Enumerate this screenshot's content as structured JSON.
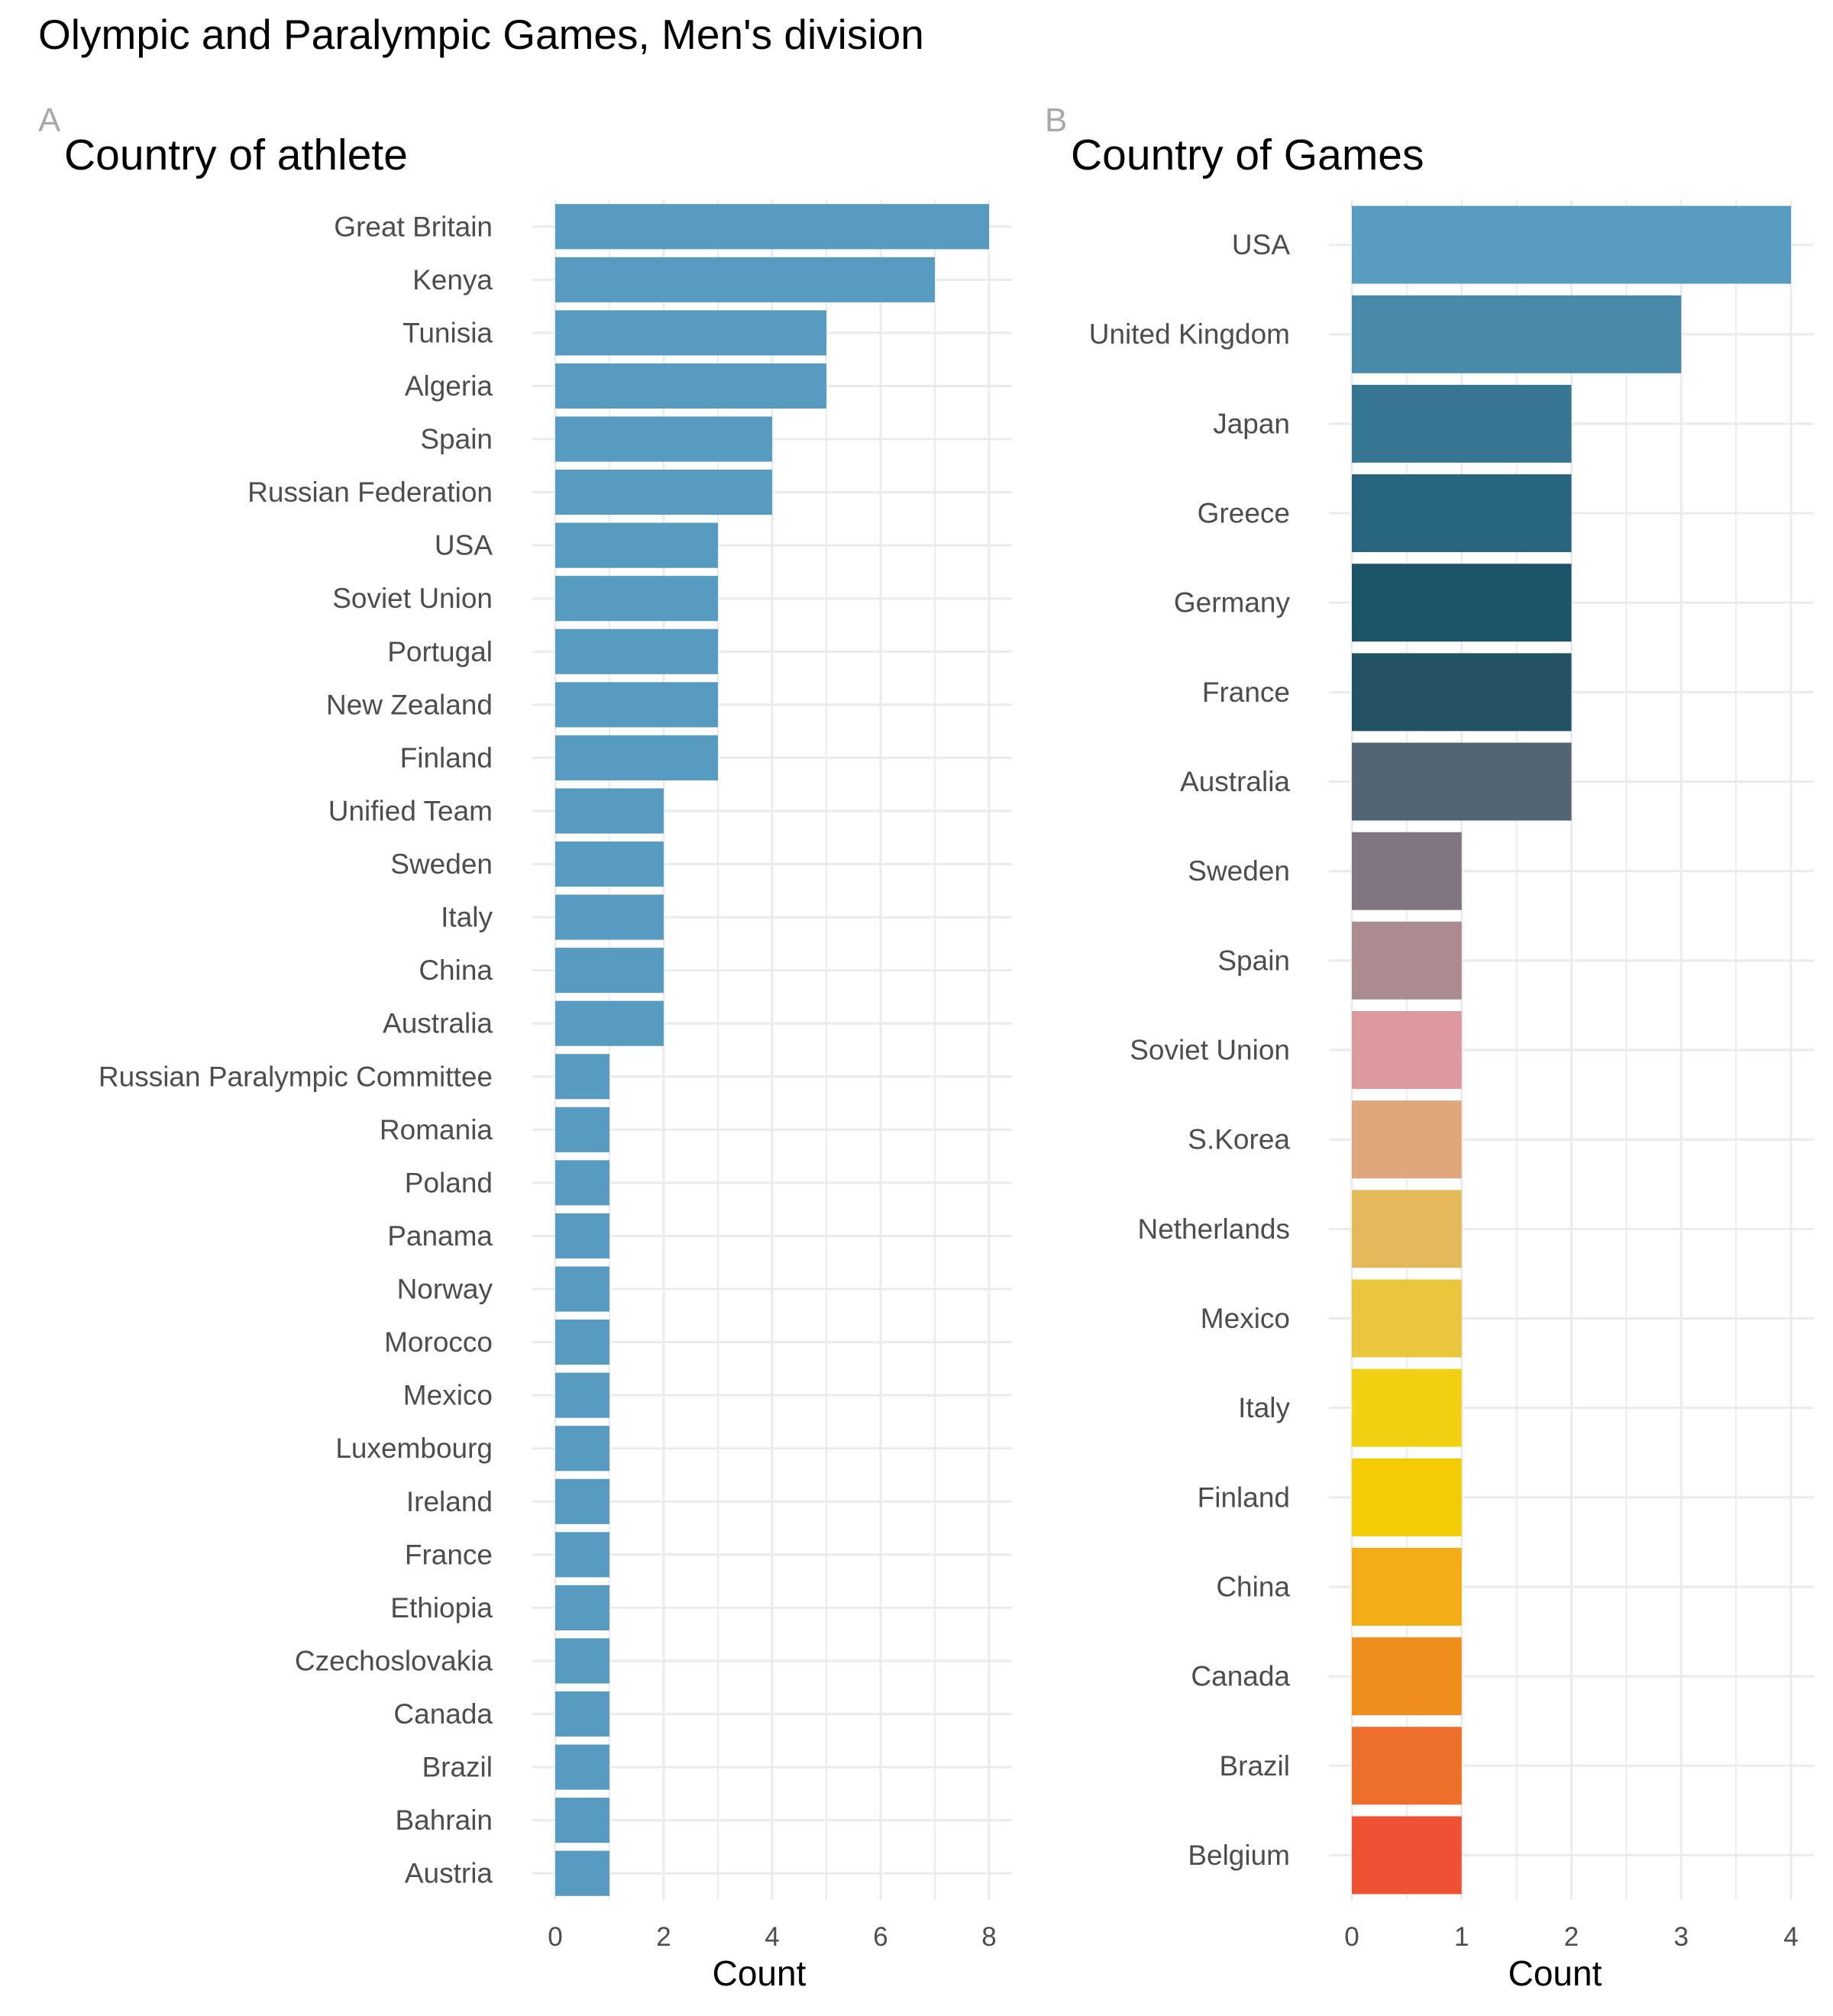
{
  "chart_data": [
    {
      "type": "bar",
      "orientation": "horizontal",
      "title": "Olympic and Paralympic Games, Men's division",
      "tag": "A",
      "subtitle": "Country of athlete",
      "xlabel": "Count",
      "ylabel": "",
      "xlim": [
        0,
        8
      ],
      "xticks": [
        0,
        2,
        4,
        6,
        8
      ],
      "grid": true,
      "bar_color": "#579cc0",
      "categories": [
        "Great Britain",
        "Kenya",
        "Tunisia",
        "Algeria",
        "Spain",
        "Russian Federation",
        "USA",
        "Soviet Union",
        "Portugal",
        "New Zealand",
        "Finland",
        "Unified Team",
        "Sweden",
        "Italy",
        "China",
        "Australia",
        "Russian Paralympic Committee",
        "Romania",
        "Poland",
        "Panama",
        "Norway",
        "Morocco",
        "Mexico",
        "Luxembourg",
        "Ireland",
        "France",
        "Ethiopia",
        "Czechoslovakia",
        "Canada",
        "Brazil",
        "Bahrain",
        "Austria"
      ],
      "values": [
        8,
        7,
        5,
        5,
        4,
        4,
        3,
        3,
        3,
        3,
        3,
        2,
        2,
        2,
        2,
        2,
        1,
        1,
        1,
        1,
        1,
        1,
        1,
        1,
        1,
        1,
        1,
        1,
        1,
        1,
        1,
        1
      ]
    },
    {
      "type": "bar",
      "orientation": "horizontal",
      "tag": "B",
      "subtitle": "Country of Games",
      "xlabel": "Count",
      "ylabel": "",
      "xlim": [
        0,
        4
      ],
      "xticks": [
        0,
        1,
        2,
        3,
        4
      ],
      "grid": true,
      "categories": [
        "USA",
        "United Kingdom",
        "Japan",
        "Greece",
        "Germany",
        "France",
        "Australia",
        "Sweden",
        "Spain",
        "Soviet Union",
        "S.Korea",
        "Netherlands",
        "Mexico",
        "Italy",
        "Finland",
        "China",
        "Canada",
        "Brazil",
        "Belgium"
      ],
      "values": [
        4,
        3,
        2,
        2,
        2,
        2,
        2,
        1,
        1,
        1,
        1,
        1,
        1,
        1,
        1,
        1,
        1,
        1,
        1
      ],
      "colors": [
        "#589cc0",
        "#4888a8",
        "#367691",
        "#27657f",
        "#1b5368",
        "#245265",
        "#536472",
        "#827581",
        "#ac8b8e",
        "#dc989e",
        "#e1a77c",
        "#e4b95a",
        "#e9c63b",
        "#f1d212",
        "#f3cc04",
        "#f2ad14",
        "#f08e1c",
        "#ee6f2a",
        "#ef5134"
      ]
    }
  ]
}
